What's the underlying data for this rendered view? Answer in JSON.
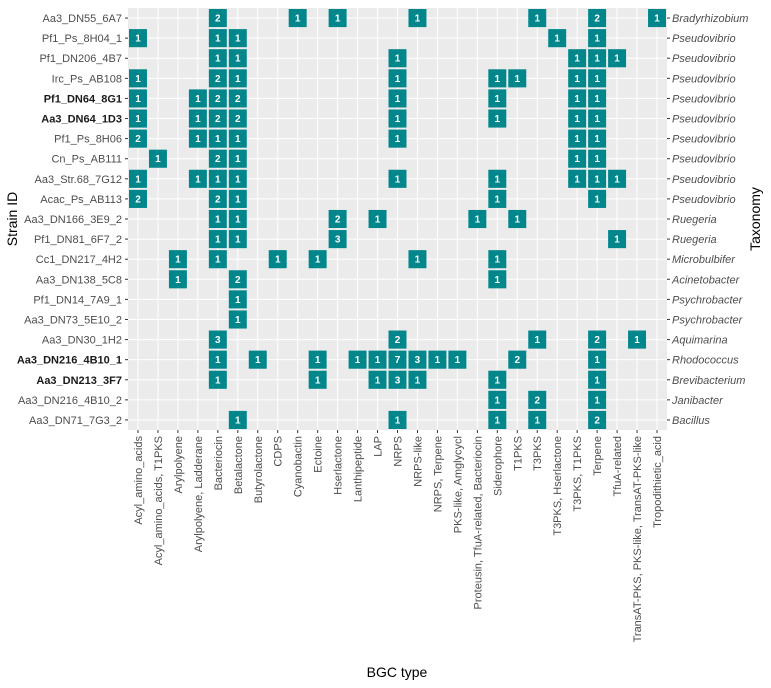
{
  "chart_data": {
    "type": "heatmap",
    "xlabel": "BGC type",
    "ylabel": "Strain ID",
    "right_label": "Taxonomy",
    "cell_color": "#00868B",
    "panel_color": "#EBEBEB",
    "grid_color": "#FFFFFF",
    "x": [
      "Acyl_amino_acids",
      "Acyl_amino_acids, T1PKS",
      "Arylpolyene",
      "Arylpolyene, Ladderane",
      "Bacteriocin",
      "Betalactone",
      "Butyrolactone",
      "CDPS",
      "Cyanobactin",
      "Ectoine",
      "Hserlactone",
      "Lanthipeptide",
      "LAP",
      "NRPS",
      "NRPS-like",
      "NRPS, Terpene",
      "PKS-like, Amglycycl",
      "Proteusin, TfuA-related, Bacteriocin",
      "Siderophore",
      "T1PKS",
      "T3PKS",
      "T3PKS, Hserlactone",
      "T3PKS, T1PKS",
      "Terpene",
      "TfuA-related",
      "TransAT-PKS, PKS-like, TransAT-PKS-like",
      "Tropodithietic_acid"
    ],
    "strains": [
      {
        "id": "Aa3_DN55_6A7",
        "taxon": "Bradyrhizobium",
        "bold": false
      },
      {
        "id": "Pf1_Ps_8H04_1",
        "taxon": "Pseudovibrio",
        "bold": false
      },
      {
        "id": "Pf1_DN206_4B7",
        "taxon": "Pseudovibrio",
        "bold": false
      },
      {
        "id": "Irc_Ps_AB108",
        "taxon": "Pseudovibrio",
        "bold": false
      },
      {
        "id": "Pf1_DN64_8G1",
        "taxon": "Pseudovibrio",
        "bold": true
      },
      {
        "id": "Aa3_DN64_1D3",
        "taxon": "Pseudovibrio",
        "bold": true
      },
      {
        "id": "Pf1_Ps_8H06",
        "taxon": "Pseudovibrio",
        "bold": false
      },
      {
        "id": "Cn_Ps_AB111",
        "taxon": "Pseudovibrio",
        "bold": false
      },
      {
        "id": "Aa3_Str.68_7G12",
        "taxon": "Pseudovibrio",
        "bold": false
      },
      {
        "id": "Acac_Ps_AB113",
        "taxon": "Pseudovibrio",
        "bold": false
      },
      {
        "id": "Aa3_DN166_3E9_2",
        "taxon": "Ruegeria",
        "bold": false
      },
      {
        "id": "Pf1_DN81_6F7_2",
        "taxon": "Ruegeria",
        "bold": false
      },
      {
        "id": "Cc1_DN217_4H2",
        "taxon": "Microbulbifer",
        "bold": false
      },
      {
        "id": "Aa3_DN138_5C8",
        "taxon": "Acinetobacter",
        "bold": false
      },
      {
        "id": "Pf1_DN14_7A9_1",
        "taxon": "Psychrobacter",
        "bold": false
      },
      {
        "id": "Aa3_DN73_5E10_2",
        "taxon": "Psychrobacter",
        "bold": false
      },
      {
        "id": "Aa3_DN30_1H2",
        "taxon": "Aquimarina",
        "bold": false
      },
      {
        "id": "Aa3_DN216_4B10_1",
        "taxon": "Rhodococcus",
        "bold": true
      },
      {
        "id": "Aa3_DN213_3F7",
        "taxon": "Brevibacterium",
        "bold": true
      },
      {
        "id": "Aa3_DN216_4B10_2",
        "taxon": "Janibacter",
        "bold": false
      },
      {
        "id": "Aa3_DN71_7G3_2",
        "taxon": "Bacillus",
        "bold": false
      }
    ],
    "cells": [
      {
        "strain": "Aa3_DN55_6A7",
        "bgc": "Bacteriocin",
        "value": 2
      },
      {
        "strain": "Aa3_DN55_6A7",
        "bgc": "Cyanobactin",
        "value": 1
      },
      {
        "strain": "Aa3_DN55_6A7",
        "bgc": "Hserlactone",
        "value": 1
      },
      {
        "strain": "Aa3_DN55_6A7",
        "bgc": "NRPS-like",
        "value": 1
      },
      {
        "strain": "Aa3_DN55_6A7",
        "bgc": "T3PKS",
        "value": 1
      },
      {
        "strain": "Aa3_DN55_6A7",
        "bgc": "Terpene",
        "value": 2
      },
      {
        "strain": "Aa3_DN55_6A7",
        "bgc": "Tropodithietic_acid",
        "value": 1
      },
      {
        "strain": "Pf1_Ps_8H04_1",
        "bgc": "Acyl_amino_acids",
        "value": 1
      },
      {
        "strain": "Pf1_Ps_8H04_1",
        "bgc": "Bacteriocin",
        "value": 1
      },
      {
        "strain": "Pf1_Ps_8H04_1",
        "bgc": "Betalactone",
        "value": 1
      },
      {
        "strain": "Pf1_Ps_8H04_1",
        "bgc": "T3PKS, Hserlactone",
        "value": 1
      },
      {
        "strain": "Pf1_Ps_8H04_1",
        "bgc": "Terpene",
        "value": 1
      },
      {
        "strain": "Pf1_DN206_4B7",
        "bgc": "Bacteriocin",
        "value": 1
      },
      {
        "strain": "Pf1_DN206_4B7",
        "bgc": "Betalactone",
        "value": 1
      },
      {
        "strain": "Pf1_DN206_4B7",
        "bgc": "NRPS",
        "value": 1
      },
      {
        "strain": "Pf1_DN206_4B7",
        "bgc": "T3PKS, T1PKS",
        "value": 1
      },
      {
        "strain": "Pf1_DN206_4B7",
        "bgc": "Terpene",
        "value": 1
      },
      {
        "strain": "Pf1_DN206_4B7",
        "bgc": "TfuA-related",
        "value": 1
      },
      {
        "strain": "Irc_Ps_AB108",
        "bgc": "Acyl_amino_acids",
        "value": 1
      },
      {
        "strain": "Irc_Ps_AB108",
        "bgc": "Bacteriocin",
        "value": 2
      },
      {
        "strain": "Irc_Ps_AB108",
        "bgc": "Betalactone",
        "value": 1
      },
      {
        "strain": "Irc_Ps_AB108",
        "bgc": "NRPS",
        "value": 1
      },
      {
        "strain": "Irc_Ps_AB108",
        "bgc": "Siderophore",
        "value": 1
      },
      {
        "strain": "Irc_Ps_AB108",
        "bgc": "T1PKS",
        "value": 1
      },
      {
        "strain": "Irc_Ps_AB108",
        "bgc": "T3PKS, T1PKS",
        "value": 1
      },
      {
        "strain": "Irc_Ps_AB108",
        "bgc": "Terpene",
        "value": 1
      },
      {
        "strain": "Pf1_DN64_8G1",
        "bgc": "Acyl_amino_acids",
        "value": 1
      },
      {
        "strain": "Pf1_DN64_8G1",
        "bgc": "Arylpolyene, Ladderane",
        "value": 1
      },
      {
        "strain": "Pf1_DN64_8G1",
        "bgc": "Bacteriocin",
        "value": 2
      },
      {
        "strain": "Pf1_DN64_8G1",
        "bgc": "Betalactone",
        "value": 2
      },
      {
        "strain": "Pf1_DN64_8G1",
        "bgc": "NRPS",
        "value": 1
      },
      {
        "strain": "Pf1_DN64_8G1",
        "bgc": "Siderophore",
        "value": 1
      },
      {
        "strain": "Pf1_DN64_8G1",
        "bgc": "T3PKS, T1PKS",
        "value": 1
      },
      {
        "strain": "Pf1_DN64_8G1",
        "bgc": "Terpene",
        "value": 1
      },
      {
        "strain": "Aa3_DN64_1D3",
        "bgc": "Acyl_amino_acids",
        "value": 1
      },
      {
        "strain": "Aa3_DN64_1D3",
        "bgc": "Arylpolyene, Ladderane",
        "value": 1
      },
      {
        "strain": "Aa3_DN64_1D3",
        "bgc": "Bacteriocin",
        "value": 2
      },
      {
        "strain": "Aa3_DN64_1D3",
        "bgc": "Betalactone",
        "value": 2
      },
      {
        "strain": "Aa3_DN64_1D3",
        "bgc": "NRPS",
        "value": 1
      },
      {
        "strain": "Aa3_DN64_1D3",
        "bgc": "Siderophore",
        "value": 1
      },
      {
        "strain": "Aa3_DN64_1D3",
        "bgc": "T3PKS, T1PKS",
        "value": 1
      },
      {
        "strain": "Aa3_DN64_1D3",
        "bgc": "Terpene",
        "value": 1
      },
      {
        "strain": "Pf1_Ps_8H06",
        "bgc": "Acyl_amino_acids",
        "value": 2
      },
      {
        "strain": "Pf1_Ps_8H06",
        "bgc": "Arylpolyene, Ladderane",
        "value": 1
      },
      {
        "strain": "Pf1_Ps_8H06",
        "bgc": "Bacteriocin",
        "value": 1
      },
      {
        "strain": "Pf1_Ps_8H06",
        "bgc": "Betalactone",
        "value": 1
      },
      {
        "strain": "Pf1_Ps_8H06",
        "bgc": "NRPS",
        "value": 1
      },
      {
        "strain": "Pf1_Ps_8H06",
        "bgc": "T3PKS, T1PKS",
        "value": 1
      },
      {
        "strain": "Pf1_Ps_8H06",
        "bgc": "Terpene",
        "value": 1
      },
      {
        "strain": "Cn_Ps_AB111",
        "bgc": "Acyl_amino_acids, T1PKS",
        "value": 1
      },
      {
        "strain": "Cn_Ps_AB111",
        "bgc": "Bacteriocin",
        "value": 2
      },
      {
        "strain": "Cn_Ps_AB111",
        "bgc": "Betalactone",
        "value": 1
      },
      {
        "strain": "Cn_Ps_AB111",
        "bgc": "T3PKS, T1PKS",
        "value": 1
      },
      {
        "strain": "Cn_Ps_AB111",
        "bgc": "Terpene",
        "value": 1
      },
      {
        "strain": "Aa3_Str.68_7G12",
        "bgc": "Acyl_amino_acids",
        "value": 1
      },
      {
        "strain": "Aa3_Str.68_7G12",
        "bgc": "Arylpolyene, Ladderane",
        "value": 1
      },
      {
        "strain": "Aa3_Str.68_7G12",
        "bgc": "Bacteriocin",
        "value": 1
      },
      {
        "strain": "Aa3_Str.68_7G12",
        "bgc": "Betalactone",
        "value": 1
      },
      {
        "strain": "Aa3_Str.68_7G12",
        "bgc": "NRPS",
        "value": 1
      },
      {
        "strain": "Aa3_Str.68_7G12",
        "bgc": "Siderophore",
        "value": 1
      },
      {
        "strain": "Aa3_Str.68_7G12",
        "bgc": "T3PKS, T1PKS",
        "value": 1
      },
      {
        "strain": "Aa3_Str.68_7G12",
        "bgc": "Terpene",
        "value": 1
      },
      {
        "strain": "Aa3_Str.68_7G12",
        "bgc": "TfuA-related",
        "value": 1
      },
      {
        "strain": "Acac_Ps_AB113",
        "bgc": "Acyl_amino_acids",
        "value": 2
      },
      {
        "strain": "Acac_Ps_AB113",
        "bgc": "Bacteriocin",
        "value": 2
      },
      {
        "strain": "Acac_Ps_AB113",
        "bgc": "Betalactone",
        "value": 1
      },
      {
        "strain": "Acac_Ps_AB113",
        "bgc": "Siderophore",
        "value": 1
      },
      {
        "strain": "Acac_Ps_AB113",
        "bgc": "Terpene",
        "value": 1
      },
      {
        "strain": "Aa3_DN166_3E9_2",
        "bgc": "Bacteriocin",
        "value": 1
      },
      {
        "strain": "Aa3_DN166_3E9_2",
        "bgc": "Betalactone",
        "value": 1
      },
      {
        "strain": "Aa3_DN166_3E9_2",
        "bgc": "Hserlactone",
        "value": 2
      },
      {
        "strain": "Aa3_DN166_3E9_2",
        "bgc": "LAP",
        "value": 1
      },
      {
        "strain": "Aa3_DN166_3E9_2",
        "bgc": "Proteusin, TfuA-related, Bacteriocin",
        "value": 1
      },
      {
        "strain": "Aa3_DN166_3E9_2",
        "bgc": "T1PKS",
        "value": 1
      },
      {
        "strain": "Pf1_DN81_6F7_2",
        "bgc": "Bacteriocin",
        "value": 1
      },
      {
        "strain": "Pf1_DN81_6F7_2",
        "bgc": "Betalactone",
        "value": 1
      },
      {
        "strain": "Pf1_DN81_6F7_2",
        "bgc": "Hserlactone",
        "value": 3
      },
      {
        "strain": "Pf1_DN81_6F7_2",
        "bgc": "TfuA-related",
        "value": 1
      },
      {
        "strain": "Cc1_DN217_4H2",
        "bgc": "Arylpolyene",
        "value": 1
      },
      {
        "strain": "Cc1_DN217_4H2",
        "bgc": "Bacteriocin",
        "value": 1
      },
      {
        "strain": "Cc1_DN217_4H2",
        "bgc": "CDPS",
        "value": 1
      },
      {
        "strain": "Cc1_DN217_4H2",
        "bgc": "Ectoine",
        "value": 1
      },
      {
        "strain": "Cc1_DN217_4H2",
        "bgc": "NRPS-like",
        "value": 1
      },
      {
        "strain": "Cc1_DN217_4H2",
        "bgc": "Siderophore",
        "value": 1
      },
      {
        "strain": "Aa3_DN138_5C8",
        "bgc": "Arylpolyene",
        "value": 1
      },
      {
        "strain": "Aa3_DN138_5C8",
        "bgc": "Betalactone",
        "value": 2
      },
      {
        "strain": "Aa3_DN138_5C8",
        "bgc": "Siderophore",
        "value": 1
      },
      {
        "strain": "Pf1_DN14_7A9_1",
        "bgc": "Betalactone",
        "value": 1
      },
      {
        "strain": "Aa3_DN73_5E10_2",
        "bgc": "Betalactone",
        "value": 1
      },
      {
        "strain": "Aa3_DN30_1H2",
        "bgc": "Bacteriocin",
        "value": 3
      },
      {
        "strain": "Aa3_DN30_1H2",
        "bgc": "NRPS",
        "value": 2
      },
      {
        "strain": "Aa3_DN30_1H2",
        "bgc": "T3PKS",
        "value": 1
      },
      {
        "strain": "Aa3_DN30_1H2",
        "bgc": "Terpene",
        "value": 2
      },
      {
        "strain": "Aa3_DN30_1H2",
        "bgc": "TransAT-PKS, PKS-like, TransAT-PKS-like",
        "value": 1
      },
      {
        "strain": "Aa3_DN216_4B10_1",
        "bgc": "Bacteriocin",
        "value": 1
      },
      {
        "strain": "Aa3_DN216_4B10_1",
        "bgc": "Butyrolactone",
        "value": 1
      },
      {
        "strain": "Aa3_DN216_4B10_1",
        "bgc": "Ectoine",
        "value": 1
      },
      {
        "strain": "Aa3_DN216_4B10_1",
        "bgc": "Lanthipeptide",
        "value": 1
      },
      {
        "strain": "Aa3_DN216_4B10_1",
        "bgc": "LAP",
        "value": 1
      },
      {
        "strain": "Aa3_DN216_4B10_1",
        "bgc": "NRPS",
        "value": 7
      },
      {
        "strain": "Aa3_DN216_4B10_1",
        "bgc": "NRPS-like",
        "value": 3
      },
      {
        "strain": "Aa3_DN216_4B10_1",
        "bgc": "NRPS, Terpene",
        "value": 1
      },
      {
        "strain": "Aa3_DN216_4B10_1",
        "bgc": "PKS-like, Amglycycl",
        "value": 1
      },
      {
        "strain": "Aa3_DN216_4B10_1",
        "bgc": "T1PKS",
        "value": 2
      },
      {
        "strain": "Aa3_DN216_4B10_1",
        "bgc": "Terpene",
        "value": 1
      },
      {
        "strain": "Aa3_DN213_3F7",
        "bgc": "Bacteriocin",
        "value": 1
      },
      {
        "strain": "Aa3_DN213_3F7",
        "bgc": "Ectoine",
        "value": 1
      },
      {
        "strain": "Aa3_DN213_3F7",
        "bgc": "LAP",
        "value": 1
      },
      {
        "strain": "Aa3_DN213_3F7",
        "bgc": "NRPS",
        "value": 3
      },
      {
        "strain": "Aa3_DN213_3F7",
        "bgc": "NRPS-like",
        "value": 1
      },
      {
        "strain": "Aa3_DN213_3F7",
        "bgc": "Siderophore",
        "value": 1
      },
      {
        "strain": "Aa3_DN213_3F7",
        "bgc": "Terpene",
        "value": 1
      },
      {
        "strain": "Aa3_DN216_4B10_2",
        "bgc": "Siderophore",
        "value": 1
      },
      {
        "strain": "Aa3_DN216_4B10_2",
        "bgc": "T3PKS",
        "value": 2
      },
      {
        "strain": "Aa3_DN216_4B10_2",
        "bgc": "Terpene",
        "value": 1
      },
      {
        "strain": "Aa3_DN71_7G3_2",
        "bgc": "Betalactone",
        "value": 1
      },
      {
        "strain": "Aa3_DN71_7G3_2",
        "bgc": "NRPS",
        "value": 1
      },
      {
        "strain": "Aa3_DN71_7G3_2",
        "bgc": "Siderophore",
        "value": 1
      },
      {
        "strain": "Aa3_DN71_7G3_2",
        "bgc": "T3PKS",
        "value": 1
      },
      {
        "strain": "Aa3_DN71_7G3_2",
        "bgc": "Terpene",
        "value": 2
      }
    ]
  }
}
